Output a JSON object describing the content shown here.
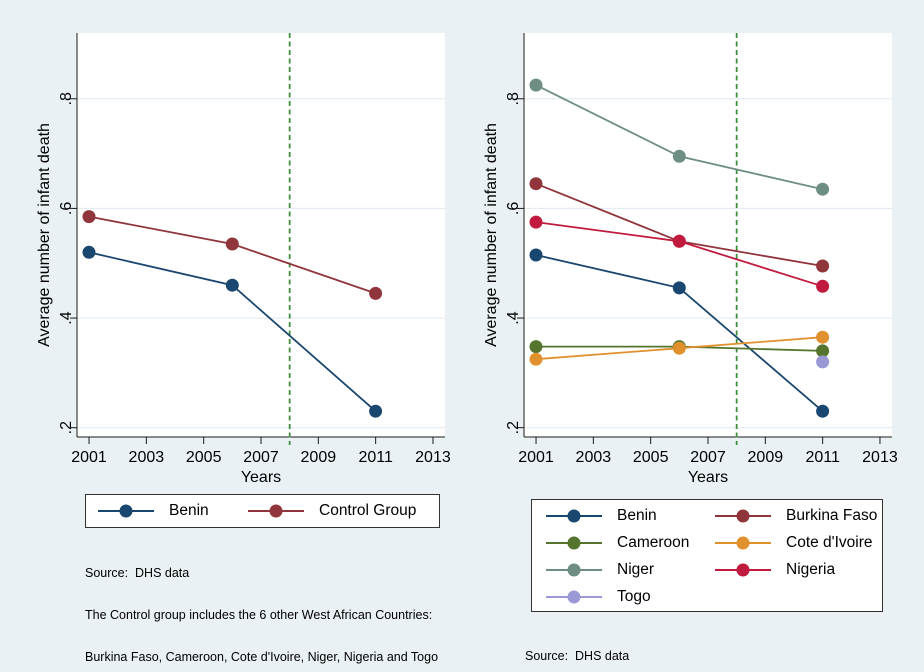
{
  "figure": {
    "description": "Two Stata-style line charts comparing average number of infant deaths over years, Benin vs control countries, with 2008 policy reference line"
  },
  "style": {
    "background": "#eaf1f4",
    "plot_background": "#ffffff",
    "grid_color": "#e3ecf4",
    "axis_color": "#1a1a1a",
    "vline_color": "#3d8f3d",
    "legend_border_color": "#333333"
  },
  "chart_data": [
    {
      "type": "line",
      "title": "",
      "xlabel": "Years",
      "ylabel": "Average number of infant death",
      "x": [
        2001,
        2006,
        2011
      ],
      "xticks": [
        2001,
        2003,
        2005,
        2007,
        2009,
        2011,
        2013
      ],
      "ytick_labels": [
        ".2",
        ".4",
        ".6",
        ".8"
      ],
      "ytick_values": [
        0.2,
        0.4,
        0.6,
        0.8
      ],
      "xlim": [
        2000.58,
        2013.42
      ],
      "ylim": [
        0.183,
        0.92
      ],
      "grid": "horizontal",
      "legend_position": "bottom",
      "legend_columns": 2,
      "vline": {
        "x": 2008,
        "color": "#3d8f3d",
        "style": "dashed"
      },
      "series": [
        {
          "name": "Benin",
          "color": "#1a476f",
          "values": [
            0.52,
            0.46,
            0.23
          ]
        },
        {
          "name": "Control Group",
          "color": "#90353b",
          "values": [
            0.585,
            0.535,
            0.445
          ]
        }
      ],
      "notes": [
        "Source:  DHS data",
        "The Control group includes the 6 other West African Countries:",
        "Burkina Faso, Cameroon, Cote d'Ivoire, Niger, Nigeria and Togo"
      ]
    },
    {
      "type": "line",
      "title": "",
      "xlabel": "Years",
      "ylabel": "Average number of infant death",
      "x": [
        2001,
        2006,
        2011
      ],
      "xticks": [
        2001,
        2003,
        2005,
        2007,
        2009,
        2011,
        2013
      ],
      "ytick_labels": [
        ".2",
        ".4",
        ".6",
        ".8"
      ],
      "ytick_values": [
        0.2,
        0.4,
        0.6,
        0.8
      ],
      "xlim": [
        2000.58,
        2013.42
      ],
      "ylim": [
        0.183,
        0.92
      ],
      "grid": "horizontal",
      "legend_position": "bottom",
      "legend_columns": 2,
      "vline": {
        "x": 2008,
        "color": "#3d8f3d",
        "style": "dashed"
      },
      "series": [
        {
          "name": "Benin",
          "color": "#1a476f",
          "values": [
            0.515,
            0.455,
            0.23
          ]
        },
        {
          "name": "Burkina Faso",
          "color": "#90353b",
          "values": [
            0.645,
            0.54,
            0.495
          ]
        },
        {
          "name": "Cameroon",
          "color": "#55752f",
          "values": [
            0.348,
            0.348,
            0.34
          ]
        },
        {
          "name": "Cote d'Ivoire",
          "color": "#e0912d",
          "values": [
            0.325,
            0.345,
            0.365
          ]
        },
        {
          "name": "Niger",
          "color": "#6e8e84",
          "values": [
            0.825,
            0.695,
            0.635
          ]
        },
        {
          "name": "Nigeria",
          "color": "#c11a3f",
          "values": [
            0.575,
            0.54,
            0.458
          ]
        },
        {
          "name": "Togo",
          "color": "#9b99d5",
          "values": [
            null,
            null,
            0.32
          ]
        }
      ],
      "notes": [
        "Source:  DHS data"
      ]
    }
  ]
}
